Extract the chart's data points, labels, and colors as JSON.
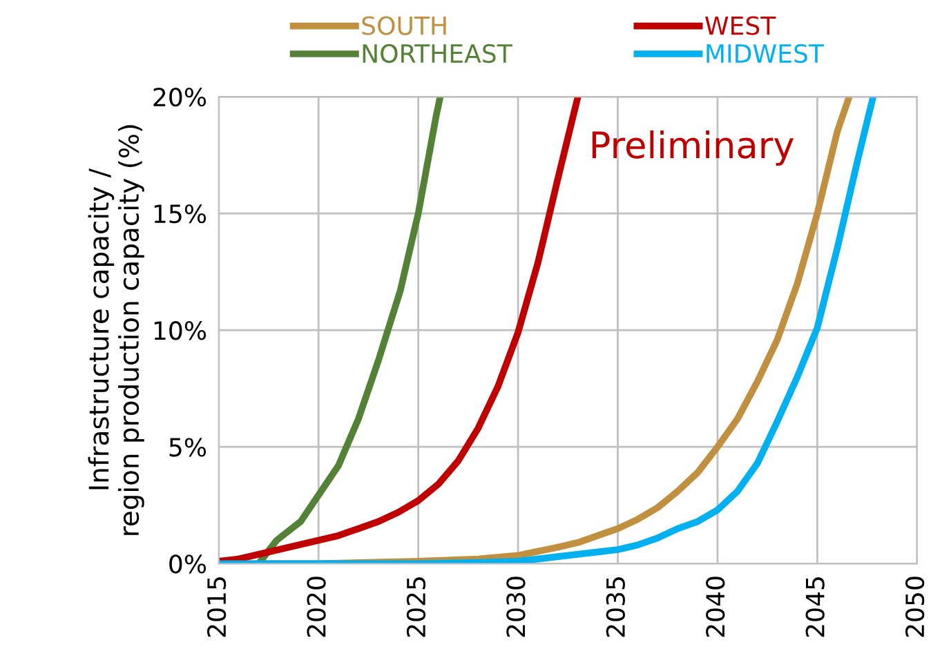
{
  "chart_data": {
    "type": "line",
    "ylabel": "Infrastructure capacity /\nregion production capacity (%)",
    "annotations": [
      "Preliminary"
    ],
    "xlim": [
      2015,
      2050
    ],
    "xticks": [
      2015,
      2020,
      2025,
      2030,
      2035,
      2040,
      2045,
      2050
    ],
    "ylim": [
      0,
      20
    ],
    "yticks": [
      {
        "value": 0,
        "label": "0%"
      },
      {
        "value": 5,
        "label": "5%"
      },
      {
        "value": 10,
        "label": "10%"
      },
      {
        "value": 15,
        "label": "15%"
      },
      {
        "value": 20,
        "label": "20%"
      }
    ],
    "grid": true,
    "legend": "top",
    "marker": "none",
    "line_style": "solid",
    "series": [
      {
        "name": "SOUTH",
        "color": "#c09040",
        "x": [
          2015,
          2020,
          2025,
          2028,
          2030,
          2032,
          2033,
          2034,
          2035,
          2036,
          2037,
          2038,
          2039,
          2040,
          2041,
          2042,
          2043,
          2044,
          2045,
          2046,
          2046.6
        ],
        "values": [
          0,
          0,
          0.1,
          0.2,
          0.35,
          0.7,
          0.9,
          1.2,
          1.5,
          1.9,
          2.4,
          3.1,
          3.9,
          5.0,
          6.2,
          7.8,
          9.6,
          12.0,
          15.0,
          18.5,
          20
        ]
      },
      {
        "name": "NORTHEAST",
        "color": "#538135",
        "x": [
          2017,
          2017.9,
          2019.1,
          2021,
          2022,
          2023,
          2024.1,
          2025,
          2025.9,
          2026.1
        ],
        "values": [
          0,
          1.0,
          1.8,
          4.2,
          6.2,
          8.7,
          11.7,
          15.0,
          19.2,
          20
        ]
      },
      {
        "name": "WEST",
        "color": "#c00000",
        "x": [
          2015,
          2016,
          2017,
          2018,
          2019,
          2020,
          2021,
          2022,
          2023,
          2024,
          2025,
          2026,
          2027,
          2028,
          2029,
          2030,
          2031,
          2032,
          2033
        ],
        "values": [
          0.1,
          0.2,
          0.4,
          0.6,
          0.8,
          1.0,
          1.2,
          1.5,
          1.8,
          2.2,
          2.7,
          3.4,
          4.4,
          5.8,
          7.6,
          9.9,
          12.9,
          16.5,
          20
        ]
      },
      {
        "name": "MIDWEST",
        "color": "#00b0f0",
        "x": [
          2015,
          2025,
          2028,
          2030,
          2032,
          2034,
          2035,
          2036,
          2037,
          2038,
          2039,
          2040,
          2041,
          2042,
          2043,
          2044,
          2045,
          2046,
          2047,
          2047.8
        ],
        "values": [
          0,
          0,
          0.05,
          0.1,
          0.3,
          0.5,
          0.6,
          0.8,
          1.1,
          1.5,
          1.8,
          2.3,
          3.1,
          4.3,
          6.1,
          8.0,
          10.1,
          13.5,
          17.2,
          20
        ]
      }
    ]
  }
}
